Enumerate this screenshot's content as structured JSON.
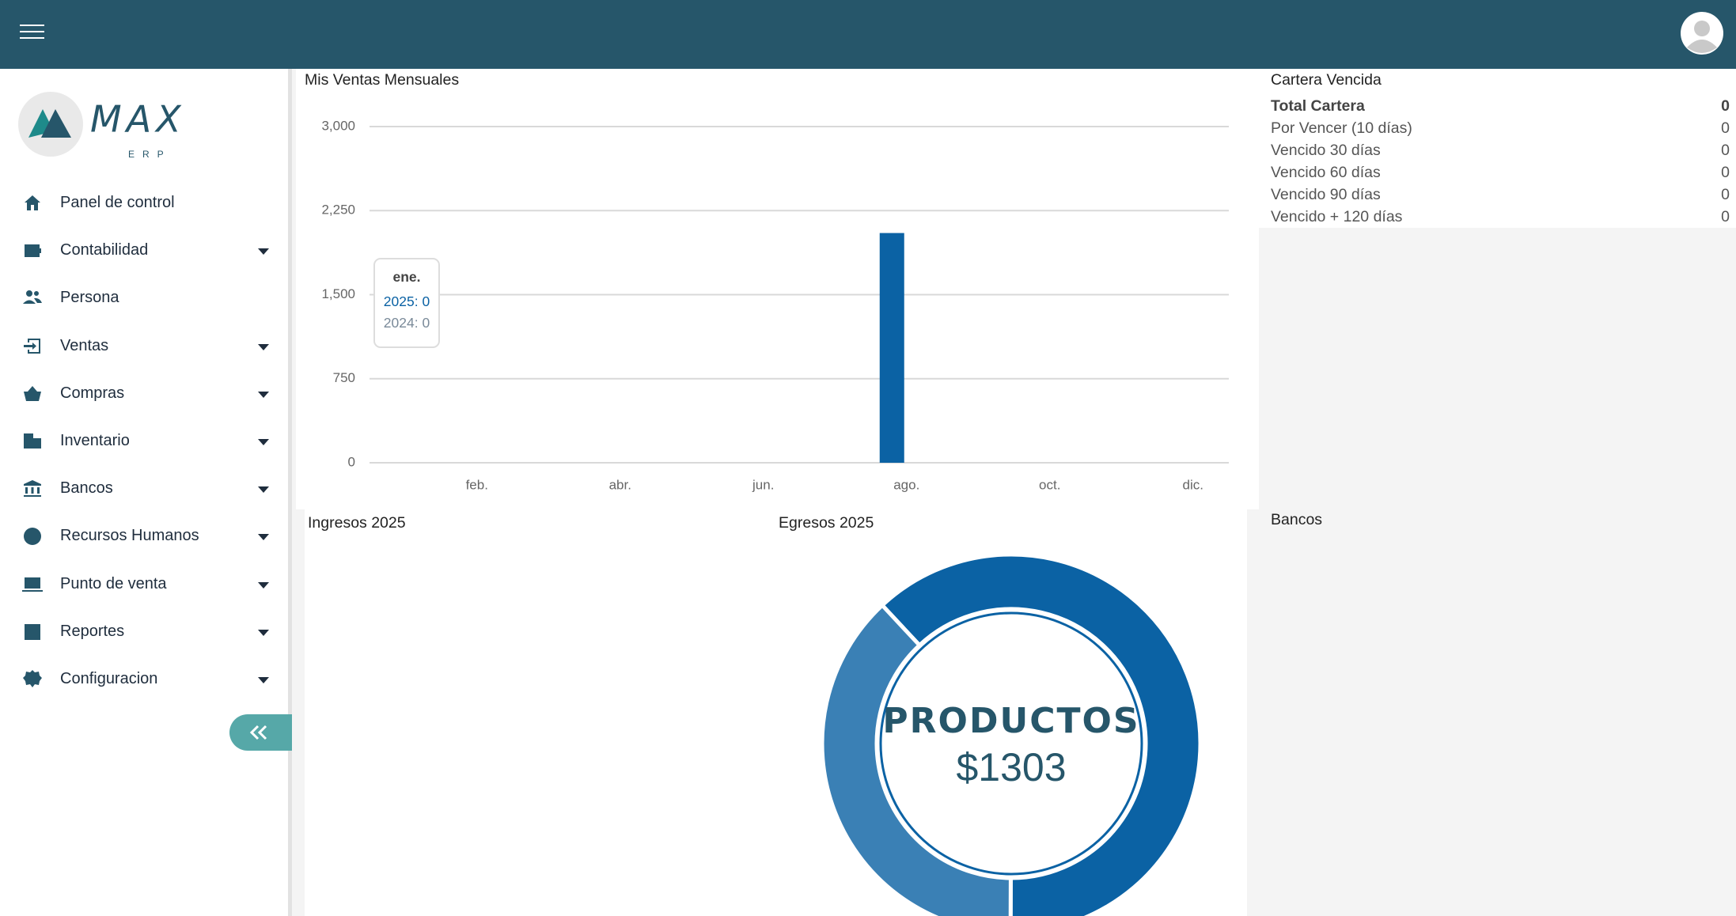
{
  "logo": {
    "name": "MAX",
    "tagline": "ERP"
  },
  "sidebar": {
    "menu": [
      {
        "label": "Panel de control",
        "has_submenu": false
      },
      {
        "label": "Contabilidad",
        "has_submenu": true
      },
      {
        "label": "Persona",
        "has_submenu": false
      },
      {
        "label": "Ventas",
        "has_submenu": true
      },
      {
        "label": "Compras",
        "has_submenu": true
      },
      {
        "label": "Inventario",
        "has_submenu": true
      },
      {
        "label": "Bancos",
        "has_submenu": true
      },
      {
        "label": "Recursos Humanos",
        "has_submenu": true
      },
      {
        "label": "Punto de venta",
        "has_submenu": true
      },
      {
        "label": "Reportes",
        "has_submenu": true
      },
      {
        "label": "Configuracion",
        "has_submenu": true
      }
    ]
  },
  "cartera": {
    "title": "Cartera Vencida",
    "rows": [
      [
        "Total Cartera",
        0
      ],
      [
        "Por Vencer (10 días)",
        0
      ],
      [
        "Vencido 30 días",
        0
      ],
      [
        "Vencido 60 días",
        0
      ],
      [
        "Vencido 90 días",
        0
      ],
      [
        "Vencido + 120 días",
        0
      ]
    ]
  },
  "panels": {
    "ingresos": "Ingresos 2025",
    "bancos": "Bancos"
  },
  "chart_data": [
    {
      "type": "bar",
      "title": "Mis Ventas Mensuales",
      "categories": [
        "ene.",
        "feb.",
        null,
        "abr.",
        null,
        "jun.",
        null,
        "ago.",
        null,
        "oct.",
        null,
        "dic."
      ],
      "series": [
        {
          "name": "2025",
          "color": "#0b62a4",
          "values": [
            0,
            0,
            0,
            0,
            0,
            0,
            0,
            2050,
            0,
            0,
            0,
            0
          ]
        },
        {
          "name": "2024",
          "color": "#7a8a99",
          "values": [
            0,
            0,
            0,
            0,
            0,
            0,
            0,
            0,
            0,
            0,
            0,
            0
          ]
        }
      ],
      "ylim": [
        0,
        3000
      ],
      "yticks": [
        0,
        750,
        {
          "value": 1500,
          "label": "1,500"
        },
        {
          "value": 2250,
          "label": "2,250"
        },
        {
          "value": 3000,
          "label": "3,000"
        }
      ],
      "grid": true
    },
    {
      "type": "donut",
      "title": "Egresos 2025",
      "values": [
        62,
        38
      ],
      "colors": [
        "#0b62a4",
        "#3a80b5"
      ],
      "center_label": "PRODUCTOS",
      "center_value": "$1303"
    }
  ]
}
